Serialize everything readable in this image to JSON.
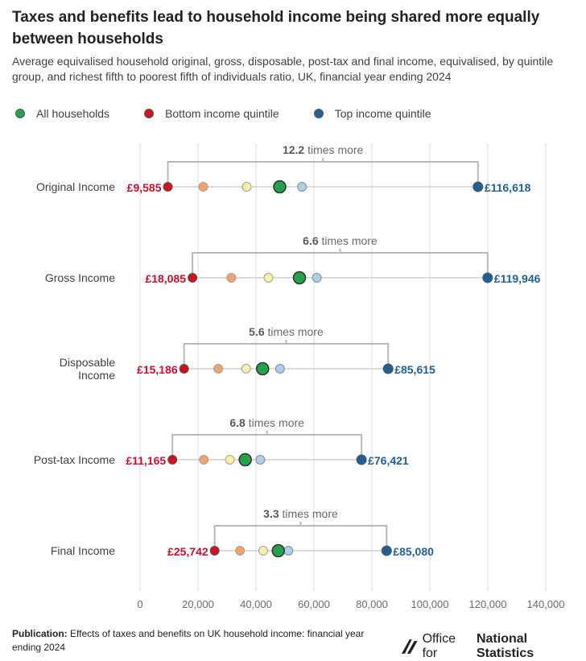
{
  "title": "Taxes and benefits lead to household income being shared more equally between households",
  "subtitle": "Average equivalised household original, gross, disposable, post-tax and final income, equivalised, by quintile group, and richest fifth to poorest fifth of individuals ratio, UK, financial year ending 2024",
  "legend": [
    {
      "label": "All households",
      "color": "#22A24A"
    },
    {
      "label": "Bottom income quintile",
      "color": "#D0121E"
    },
    {
      "label": "Top income quintile",
      "color": "#206095"
    }
  ],
  "ratio_suffix": "times more",
  "footer": {
    "label": "Publication:",
    "text": "Effects of taxes and benefits on UK household income: financial year ending 2024"
  },
  "logo": {
    "regular": "Office for",
    "bold": "National Statistics"
  },
  "colors": {
    "bottom": "#D0121E",
    "second": "#F5A26B",
    "middle": "#FBF0A8",
    "all": "#22A24A",
    "fourth": "#A9D2EA",
    "top": "#206095",
    "bottom_label": "#C8102E",
    "top_label": "#206095"
  },
  "chart_data": {
    "type": "scatter",
    "xlim": [
      0,
      140000
    ],
    "x_ticks": [
      "0",
      "20,000",
      "40,000",
      "60,000",
      "80,000",
      "100,000",
      "120,000",
      "140,000"
    ],
    "x_tick_values": [
      0,
      20000,
      40000,
      60000,
      80000,
      100000,
      120000,
      140000
    ],
    "grid": true,
    "categories": [
      "Original Income",
      "Gross Income",
      "Disposable Income",
      "Post-tax Income",
      "Final Income"
    ],
    "rows": [
      {
        "label": "Original Income",
        "bottom": 9585,
        "second": 21800,
        "middle": 36800,
        "all": 48200,
        "fourth": 55900,
        "top": 116618,
        "bottom_label": "£9,585",
        "top_label": "£116,618",
        "ratio": "12.2"
      },
      {
        "label": "Gross Income",
        "bottom": 18085,
        "second": 31500,
        "middle": 44300,
        "all": 55000,
        "fourth": 61000,
        "top": 119946,
        "bottom_label": "£18,085",
        "top_label": "£119,946",
        "ratio": "6.6"
      },
      {
        "label": "Disposable Income",
        "bottom": 15186,
        "second": 27000,
        "middle": 36600,
        "all": 42300,
        "fourth": 48300,
        "top": 85615,
        "bottom_label": "£15,186",
        "top_label": "£85,615",
        "ratio": "5.6"
      },
      {
        "label": "Post-tax Income",
        "bottom": 11165,
        "second": 22000,
        "middle": 31000,
        "all": 36300,
        "fourth": 41500,
        "top": 76421,
        "bottom_label": "£11,165",
        "top_label": "£76,421",
        "ratio": "6.8"
      },
      {
        "label": "Final Income",
        "bottom": 25742,
        "second": 34500,
        "middle": 42500,
        "all": 47700,
        "fourth": 51200,
        "top": 85080,
        "bottom_label": "£25,742",
        "top_label": "£85,080",
        "ratio": "3.3"
      }
    ]
  }
}
